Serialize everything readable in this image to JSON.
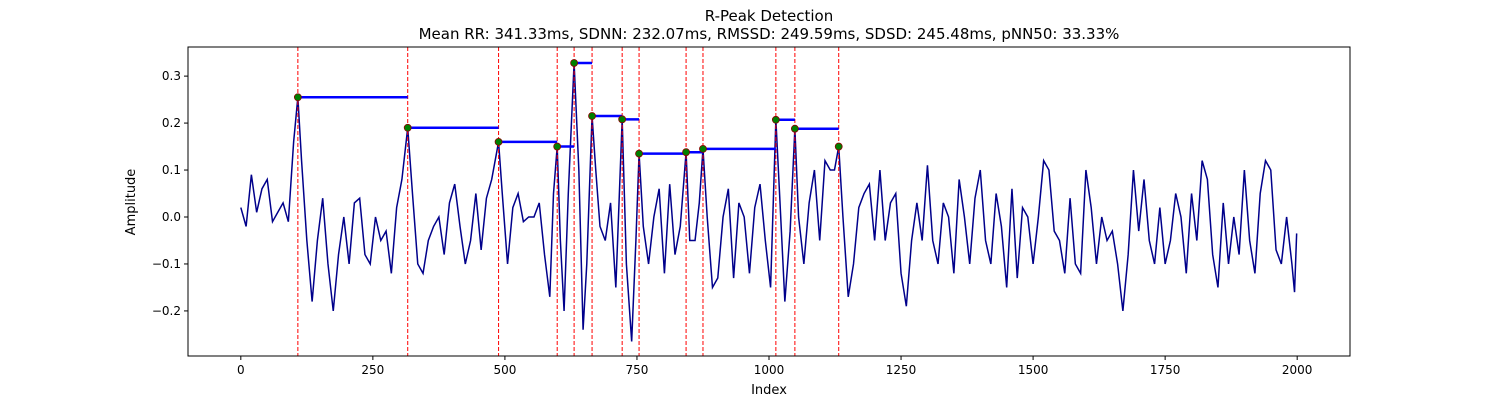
{
  "chart_data": {
    "type": "line",
    "title": "R-Peak Detection",
    "subtitle": "Mean RR: 341.33ms, SDNN: 232.07ms, RMSSD: 249.59ms, SDSD: 245.48ms, pNN50: 33.33%",
    "xlabel": "Index",
    "ylabel": "Amplitude",
    "xlim": [
      -100,
      2100
    ],
    "ylim": [
      -0.296,
      0.362
    ],
    "xticks": [
      0,
      250,
      500,
      750,
      1000,
      1250,
      1500,
      1750,
      2000
    ],
    "yticks": [
      {
        "value": -0.2,
        "label": "−0.2"
      },
      {
        "value": -0.1,
        "label": "−0.1"
      },
      {
        "value": 0,
        "label": "0.0"
      },
      0.1,
      0.2,
      0.3
    ],
    "series": [
      {
        "color": "#00008b",
        "x": [
          0,
          10,
          20,
          30,
          40,
          50,
          60,
          70,
          80,
          90,
          100,
          108,
          115,
          125,
          135,
          145,
          155,
          165,
          175,
          185,
          195,
          205,
          215,
          225,
          235,
          245,
          255,
          265,
          275,
          285,
          295,
          305,
          316,
          325,
          335,
          345,
          355,
          365,
          375,
          385,
          395,
          405,
          415,
          425,
          435,
          445,
          455,
          465,
          475,
          488,
          495,
          505,
          515,
          525,
          535,
          545,
          555,
          565,
          575,
          585,
          592,
          599,
          605,
          612,
          620,
          631,
          640,
          648,
          655,
          665,
          672,
          680,
          690,
          700,
          710,
          722,
          730,
          740,
          748,
          754,
          762,
          772,
          782,
          792,
          802,
          812,
          822,
          832,
          843,
          850,
          860,
          868,
          875,
          883,
          893,
          903,
          913,
          923,
          933,
          943,
          953,
          963,
          973,
          983,
          993,
          1003,
          1013,
          1020,
          1030,
          1040,
          1049,
          1056,
          1066,
          1076,
          1086,
          1096,
          1106,
          1116,
          1124,
          1132,
          1140,
          1150,
          1160,
          1170,
          1180,
          1190,
          1200,
          1210,
          1220,
          1230,
          1240,
          1250,
          1260,
          1270,
          1280,
          1290,
          1300,
          1310,
          1320,
          1330,
          1340,
          1350,
          1360,
          1370,
          1380,
          1390,
          1400,
          1410,
          1420,
          1430,
          1440,
          1450,
          1460,
          1470,
          1480,
          1490,
          1500,
          1510,
          1520,
          1530,
          1540,
          1550,
          1560,
          1570,
          1580,
          1590,
          1600,
          1610,
          1620,
          1630,
          1640,
          1650,
          1660,
          1670,
          1680,
          1690,
          1700,
          1710,
          1720,
          1730,
          1740,
          1750,
          1760,
          1770,
          1780,
          1790,
          1800,
          1810,
          1820,
          1830,
          1840,
          1850,
          1860,
          1870,
          1880,
          1890,
          1900,
          1910,
          1920,
          1930,
          1940,
          1950,
          1960,
          1970,
          1980,
          1990,
          1995,
          1999
        ],
        "values": [
          0.02,
          -0.02,
          0.09,
          0.01,
          0.06,
          0.08,
          -0.01,
          0.01,
          0.03,
          -0.01,
          0.16,
          0.255,
          0.12,
          -0.05,
          -0.18,
          -0.05,
          0.04,
          -0.1,
          -0.2,
          -0.08,
          0.0,
          -0.1,
          0.03,
          0.04,
          -0.08,
          -0.1,
          0.0,
          -0.05,
          -0.03,
          -0.12,
          0.02,
          0.08,
          0.19,
          0.05,
          -0.1,
          -0.12,
          -0.05,
          -0.02,
          0.0,
          -0.08,
          0.03,
          0.07,
          -0.02,
          -0.1,
          -0.05,
          0.05,
          -0.07,
          0.04,
          0.08,
          0.16,
          0.05,
          -0.1,
          0.02,
          0.05,
          -0.01,
          0.0,
          0.0,
          0.03,
          -0.08,
          -0.17,
          0.05,
          0.15,
          -0.05,
          -0.2,
          0.05,
          0.328,
          0.1,
          -0.24,
          -0.1,
          0.215,
          0.1,
          -0.02,
          -0.05,
          0.03,
          -0.15,
          0.208,
          -0.1,
          -0.265,
          -0.05,
          0.135,
          -0.02,
          -0.1,
          0.0,
          0.06,
          -0.12,
          0.07,
          -0.08,
          -0.02,
          0.138,
          -0.05,
          -0.05,
          0.03,
          0.145,
          0.0,
          -0.15,
          -0.13,
          0.0,
          0.06,
          -0.13,
          0.03,
          0.0,
          -0.12,
          0.02,
          0.07,
          -0.05,
          -0.15,
          0.207,
          0.05,
          -0.18,
          -0.03,
          0.188,
          0.0,
          -0.1,
          0.03,
          0.1,
          -0.05,
          0.12,
          0.1,
          0.1,
          0.15,
          0.0,
          -0.17,
          -0.1,
          0.02,
          0.05,
          0.07,
          -0.05,
          0.1,
          -0.05,
          0.03,
          0.05,
          -0.12,
          -0.19,
          -0.05,
          0.03,
          -0.05,
          0.11,
          -0.05,
          -0.1,
          0.03,
          0.0,
          -0.12,
          0.08,
          0.0,
          -0.1,
          0.04,
          0.1,
          -0.05,
          -0.1,
          0.05,
          -0.02,
          -0.15,
          0.06,
          -0.13,
          0.02,
          0.0,
          -0.1,
          0.0,
          0.12,
          0.1,
          -0.03,
          -0.05,
          -0.12,
          0.04,
          -0.1,
          -0.12,
          0.1,
          0.02,
          -0.1,
          0.0,
          -0.05,
          -0.03,
          -0.1,
          -0.2,
          -0.08,
          0.1,
          -0.03,
          0.08,
          -0.05,
          -0.1,
          0.02,
          -0.1,
          -0.05,
          0.05,
          0.0,
          -0.12,
          0.05,
          -0.05,
          0.12,
          0.08,
          -0.08,
          -0.15,
          0.03,
          -0.1,
          0.0,
          -0.08,
          0.1,
          -0.05,
          -0.12,
          0.05,
          0.12,
          0.1,
          -0.07,
          -0.1,
          0.0,
          -0.1,
          -0.16,
          -0.035
        ]
      }
    ],
    "peaks": {
      "color": "green",
      "edgecolor": "#8b0000",
      "line_color": "red",
      "interval_color": "blue",
      "x": [
        108,
        316,
        488,
        599,
        631,
        665,
        722,
        754,
        843,
        875,
        1013,
        1049,
        1132
      ],
      "values": [
        0.255,
        0.19,
        0.16,
        0.15,
        0.328,
        0.215,
        0.208,
        0.135,
        0.138,
        0.145,
        0.207,
        0.188,
        0.15
      ]
    }
  }
}
